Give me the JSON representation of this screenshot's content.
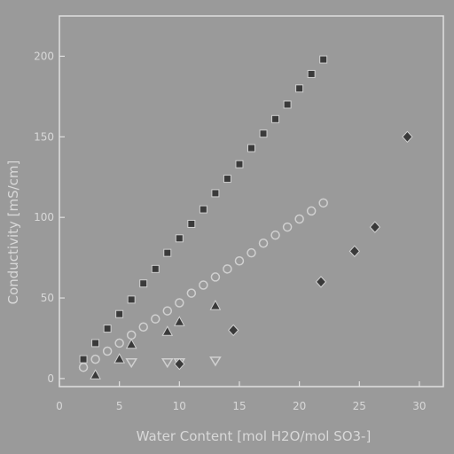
{
  "chart_data": {
    "type": "scatter",
    "title": "",
    "xlabel": "Water Content [mol H2O/mol SO3-]",
    "ylabel": "Conductivity [mS/cm]",
    "xlim": [
      0,
      32
    ],
    "ylim": [
      -5,
      225
    ],
    "xticks": [
      "0",
      "5",
      "10",
      "15",
      "20",
      "25",
      "30"
    ],
    "yticks": [
      "0",
      "50",
      "100",
      "150",
      "200"
    ],
    "grid": false,
    "legend": "none",
    "colors": {
      "background": "#9a9a9a",
      "marker": "#3a3a3a",
      "text": "#d8d8d8"
    },
    "series": [
      {
        "marker": "filled-square",
        "x": [
          2,
          3,
          4,
          5,
          6,
          7,
          8,
          9,
          10,
          11,
          12,
          13,
          14,
          15,
          16,
          17,
          18,
          19,
          20,
          21,
          22
        ],
        "y": [
          12,
          22,
          31,
          40,
          49,
          59,
          68,
          78,
          87,
          96,
          105,
          115,
          124,
          133,
          143,
          152,
          161,
          170,
          180,
          189,
          198
        ]
      },
      {
        "marker": "open-circle",
        "x": [
          2,
          3,
          4,
          5,
          6,
          7,
          8,
          9,
          10,
          11,
          12,
          13,
          14,
          15,
          16,
          17,
          18,
          19,
          20,
          21,
          22
        ],
        "y": [
          7,
          12,
          17,
          22,
          27,
          32,
          37,
          42,
          47,
          53,
          58,
          63,
          68,
          73,
          78,
          84,
          89,
          94,
          99,
          104,
          109
        ]
      },
      {
        "marker": "filled-triangle-up",
        "x": [
          3,
          5,
          6,
          9,
          10,
          13
        ],
        "y": [
          2,
          12,
          21,
          29,
          35,
          45
        ]
      },
      {
        "marker": "open-triangle-down",
        "x": [
          6,
          9,
          10,
          13
        ],
        "y": [
          10,
          10,
          10,
          11
        ]
      },
      {
        "marker": "filled-diamond",
        "x": [
          10,
          14.5,
          21.8,
          24.6,
          26.3,
          29
        ],
        "y": [
          9,
          30,
          60,
          79,
          94,
          150
        ]
      }
    ]
  }
}
